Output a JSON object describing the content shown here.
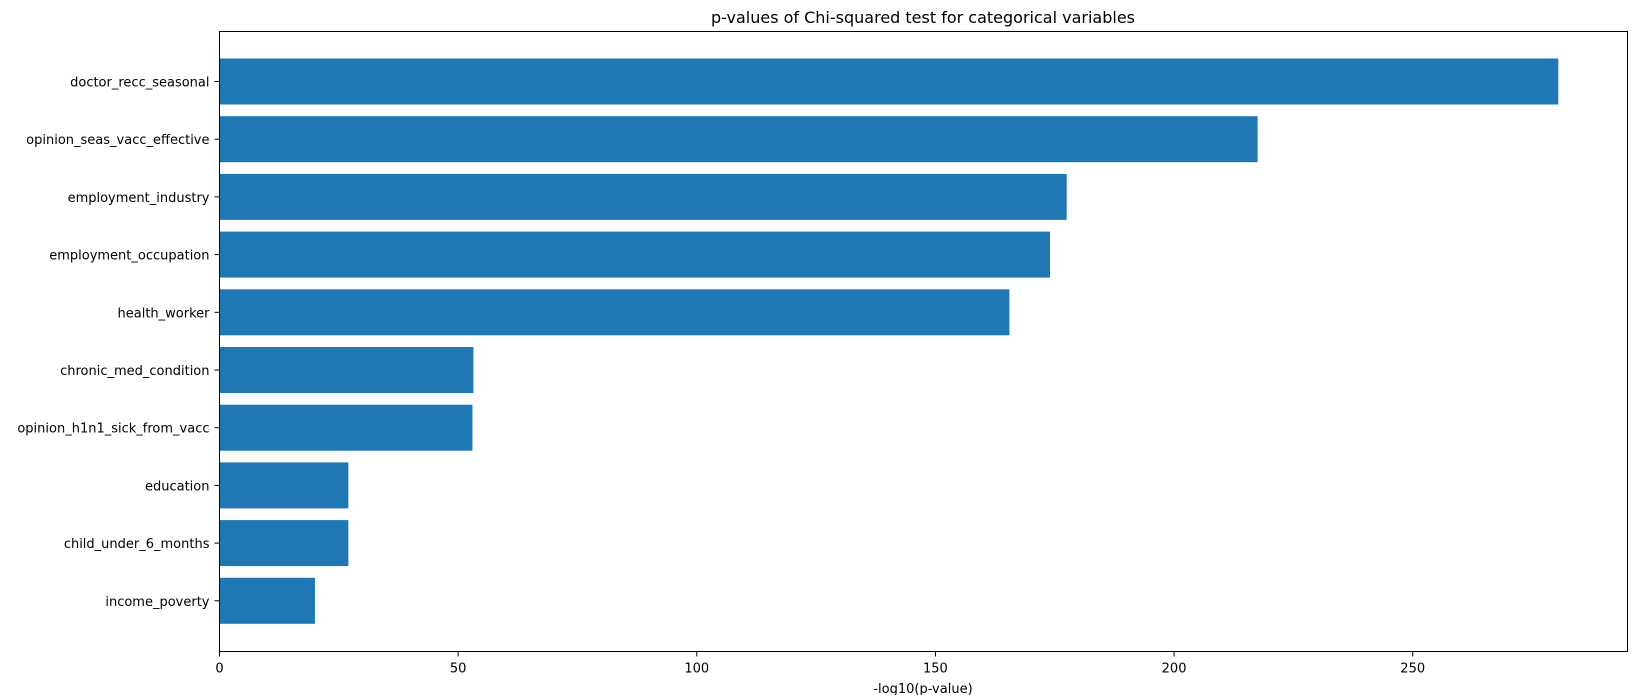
{
  "chart_data": {
    "type": "bar",
    "orientation": "horizontal",
    "title": "p-values of Chi-squared test for categorical variables",
    "xlabel": "-log10(p-value)",
    "ylabel": "",
    "xlim": [
      0,
      295
    ],
    "xticks": [
      0,
      50,
      100,
      150,
      200,
      250
    ],
    "categories": [
      "doctor_recc_seasonal",
      "opinion_seas_vacc_effective",
      "employment_industry",
      "employment_occupation",
      "health_worker",
      "chronic_med_condition",
      "opinion_h1n1_sick_from_vacc",
      "education",
      "child_under_6_months",
      "income_poverty"
    ],
    "values": [
      280.5,
      217.5,
      177.5,
      174,
      165.5,
      53.2,
      53,
      27,
      27,
      20
    ],
    "bar_color": "#1f77b4",
    "grid": false,
    "legend": "none"
  }
}
